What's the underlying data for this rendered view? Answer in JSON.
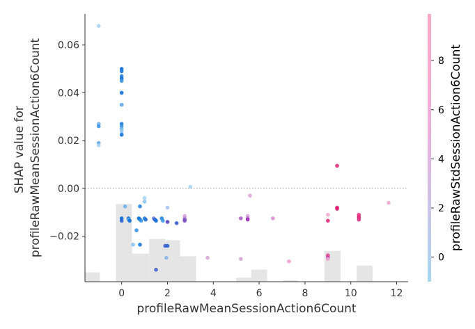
{
  "chart_data": {
    "type": "scatter",
    "xlabel": "profileRawMeanSessionAction6Count",
    "ylabel_lines": [
      "SHAP value for",
      "profileRawMeanSessionAction6Count"
    ],
    "xlim": [
      -1.6,
      12.5
    ],
    "ylim": [
      -0.039,
      0.073
    ],
    "xticks": [
      0,
      2,
      4,
      6,
      8,
      10,
      12
    ],
    "yticks": [
      -0.02,
      0.0,
      0.02,
      0.04,
      0.06
    ],
    "ytick_labels": [
      "−0.02",
      "0.00",
      "0.02",
      "0.04",
      "0.06"
    ],
    "zero_line": true,
    "colorbar": {
      "label": "profileRawStdSessionAction6Count",
      "range": [
        -1,
        9.9
      ],
      "ticks": [
        0,
        2,
        4,
        6,
        8
      ],
      "colors": [
        "#a6d7f1",
        "#c9c6e9",
        "#e5b3e0",
        "#f7acd1",
        "#fcaac8"
      ]
    },
    "histogram": {
      "bins": [
        {
          "x0": -1.6,
          "x1": -0.95,
          "h": 0.035
        },
        {
          "x0": -0.25,
          "x1": 0.45,
          "h": 0.29
        },
        {
          "x0": 0.45,
          "x1": 1.2,
          "h": 0.105
        },
        {
          "x0": 1.2,
          "x1": 1.9,
          "h": 0.16
        },
        {
          "x0": 1.9,
          "x1": 2.55,
          "h": 0.155
        },
        {
          "x0": 2.55,
          "x1": 3.25,
          "h": 0.095
        },
        {
          "x0": 5.0,
          "x1": 5.65,
          "h": 0.015
        },
        {
          "x0": 5.65,
          "x1": 6.35,
          "h": 0.045
        },
        {
          "x0": 7.05,
          "x1": 7.7,
          "h": 0.005
        },
        {
          "x0": 8.85,
          "x1": 9.55,
          "h": 0.115
        },
        {
          "x0": 10.25,
          "x1": 10.95,
          "h": 0.06
        }
      ]
    },
    "points": [
      {
        "x": -1.0,
        "y": 0.068,
        "c": "#a9d4f4"
      },
      {
        "x": -1.0,
        "y": 0.027,
        "c": "#6fb3ea"
      },
      {
        "x": -1.0,
        "y": 0.026,
        "c": "#3c95e3"
      },
      {
        "x": -1.0,
        "y": 0.019,
        "c": "#5aa6e8"
      },
      {
        "x": -1.0,
        "y": 0.018,
        "c": "#a9d4f4"
      },
      {
        "x": 0.0,
        "y": 0.05,
        "c": "#0b6ed8"
      },
      {
        "x": 0.0,
        "y": 0.049,
        "c": "#1877dc"
      },
      {
        "x": 0.0,
        "y": 0.047,
        "c": "#2a84df"
      },
      {
        "x": 0.0,
        "y": 0.046,
        "c": "#0b6ed8"
      },
      {
        "x": 0.0,
        "y": 0.045,
        "c": "#3c95e3"
      },
      {
        "x": 0.0,
        "y": 0.04,
        "c": "#0b6ed8"
      },
      {
        "x": 0.0,
        "y": 0.035,
        "c": "#5aa6e8"
      },
      {
        "x": 0.0,
        "y": 0.027,
        "c": "#1877dc"
      },
      {
        "x": 0.0,
        "y": 0.026,
        "c": "#3c95e3"
      },
      {
        "x": 0.0,
        "y": 0.025,
        "c": "#6fb3ea"
      },
      {
        "x": 0.0,
        "y": 0.024,
        "c": "#8cc3ef"
      },
      {
        "x": 0.0,
        "y": 0.0225,
        "c": "#0b6ed8"
      },
      {
        "x": 0.0,
        "y": 0.0225,
        "c": "#2a84df"
      },
      {
        "x": 0.0,
        "y": -0.0125,
        "c": "#0b6ed8"
      },
      {
        "x": 0.0,
        "y": -0.0135,
        "c": "#2a5fcf"
      },
      {
        "x": 0.15,
        "y": -0.0075,
        "c": "#6fb3ea"
      },
      {
        "x": 0.3,
        "y": -0.0125,
        "c": "#1f6fd6"
      },
      {
        "x": 0.3,
        "y": -0.013,
        "c": "#5aa6e8"
      },
      {
        "x": 0.35,
        "y": -0.0135,
        "c": "#0b6ed8"
      },
      {
        "x": 0.5,
        "y": -0.0235,
        "c": "#8cc3ef"
      },
      {
        "x": 0.65,
        "y": -0.0175,
        "c": "#3c95e3"
      },
      {
        "x": 0.75,
        "y": -0.0125,
        "c": "#0b6ed8"
      },
      {
        "x": 0.8,
        "y": -0.013,
        "c": "#1877dc"
      },
      {
        "x": 0.85,
        "y": -0.0135,
        "c": "#3c95e3"
      },
      {
        "x": 0.8,
        "y": -0.0075,
        "c": "#2a84df"
      },
      {
        "x": 0.8,
        "y": -0.0235,
        "c": "#1877dc"
      },
      {
        "x": 1.0,
        "y": -0.004,
        "c": "#a9d4f4"
      },
      {
        "x": 1.0,
        "y": -0.0055,
        "c": "#8cc3ef"
      },
      {
        "x": 1.0,
        "y": -0.0125,
        "c": "#2a84df"
      },
      {
        "x": 1.05,
        "y": -0.013,
        "c": "#1f6fd6"
      },
      {
        "x": 1.4,
        "y": -0.0125,
        "c": "#6a87db"
      },
      {
        "x": 1.45,
        "y": -0.013,
        "c": "#3c5fd0"
      },
      {
        "x": 1.5,
        "y": -0.0135,
        "c": "#0b6ed8"
      },
      {
        "x": 1.5,
        "y": -0.034,
        "c": "#3f5fc8"
      },
      {
        "x": 1.75,
        "y": -0.0125,
        "c": "#2a84df"
      },
      {
        "x": 1.8,
        "y": -0.0135,
        "c": "#3c95e3"
      },
      {
        "x": 1.9,
        "y": -0.024,
        "c": "#3c5fd0"
      },
      {
        "x": 1.95,
        "y": -0.029,
        "c": "#8fb5e8"
      },
      {
        "x": 2.0,
        "y": -0.024,
        "c": "#2a5fcf"
      },
      {
        "x": 2.0,
        "y": -0.008,
        "c": "#a9c3ef"
      },
      {
        "x": 2.0,
        "y": -0.014,
        "c": "#5b3fc0"
      },
      {
        "x": 2.4,
        "y": -0.0145,
        "c": "#3c5fd0"
      },
      {
        "x": 2.75,
        "y": -0.0115,
        "c": "#d9a6d9"
      },
      {
        "x": 2.75,
        "y": -0.0125,
        "c": "#b88fd5"
      },
      {
        "x": 2.75,
        "y": -0.013,
        "c": "#9a5fc8"
      },
      {
        "x": 2.75,
        "y": -0.0135,
        "c": "#7a4fc0"
      },
      {
        "x": 3.0,
        "y": 0.0007,
        "c": "#a9d4f4"
      },
      {
        "x": 3.75,
        "y": -0.029,
        "c": "#d9a6d9"
      },
      {
        "x": 5.2,
        "y": -0.0125,
        "c": "#b05fc8"
      },
      {
        "x": 5.2,
        "y": -0.0295,
        "c": "#d9a6d9"
      },
      {
        "x": 5.5,
        "y": -0.0115,
        "c": "#d9a6d9"
      },
      {
        "x": 5.5,
        "y": -0.0125,
        "c": "#c06ad0"
      },
      {
        "x": 5.5,
        "y": -0.013,
        "c": "#9a2fb5"
      },
      {
        "x": 5.6,
        "y": -0.003,
        "c": "#e2a6dc"
      },
      {
        "x": 6.6,
        "y": -0.0125,
        "c": "#d98fd0"
      },
      {
        "x": 7.3,
        "y": -0.0305,
        "c": "#ef9fcc"
      },
      {
        "x": 9.0,
        "y": -0.011,
        "c": "#f0a6d0"
      },
      {
        "x": 9.0,
        "y": -0.0135,
        "c": "#e0287a"
      },
      {
        "x": 9.0,
        "y": -0.028,
        "c": "#d9438f"
      },
      {
        "x": 9.0,
        "y": -0.029,
        "c": "#c03aa5"
      },
      {
        "x": 9.0,
        "y": -0.0295,
        "c": "#f0a6d0"
      },
      {
        "x": 9.4,
        "y": 0.0095,
        "c": "#e8307c"
      },
      {
        "x": 9.4,
        "y": -0.008,
        "c": "#e0287a"
      },
      {
        "x": 9.4,
        "y": -0.0085,
        "c": "#e61b72"
      },
      {
        "x": 10.35,
        "y": -0.011,
        "c": "#e8307c"
      },
      {
        "x": 10.35,
        "y": -0.012,
        "c": "#e61b72"
      },
      {
        "x": 10.35,
        "y": -0.013,
        "c": "#d9307e"
      },
      {
        "x": 11.65,
        "y": -0.006,
        "c": "#f2a6cf"
      }
    ]
  }
}
